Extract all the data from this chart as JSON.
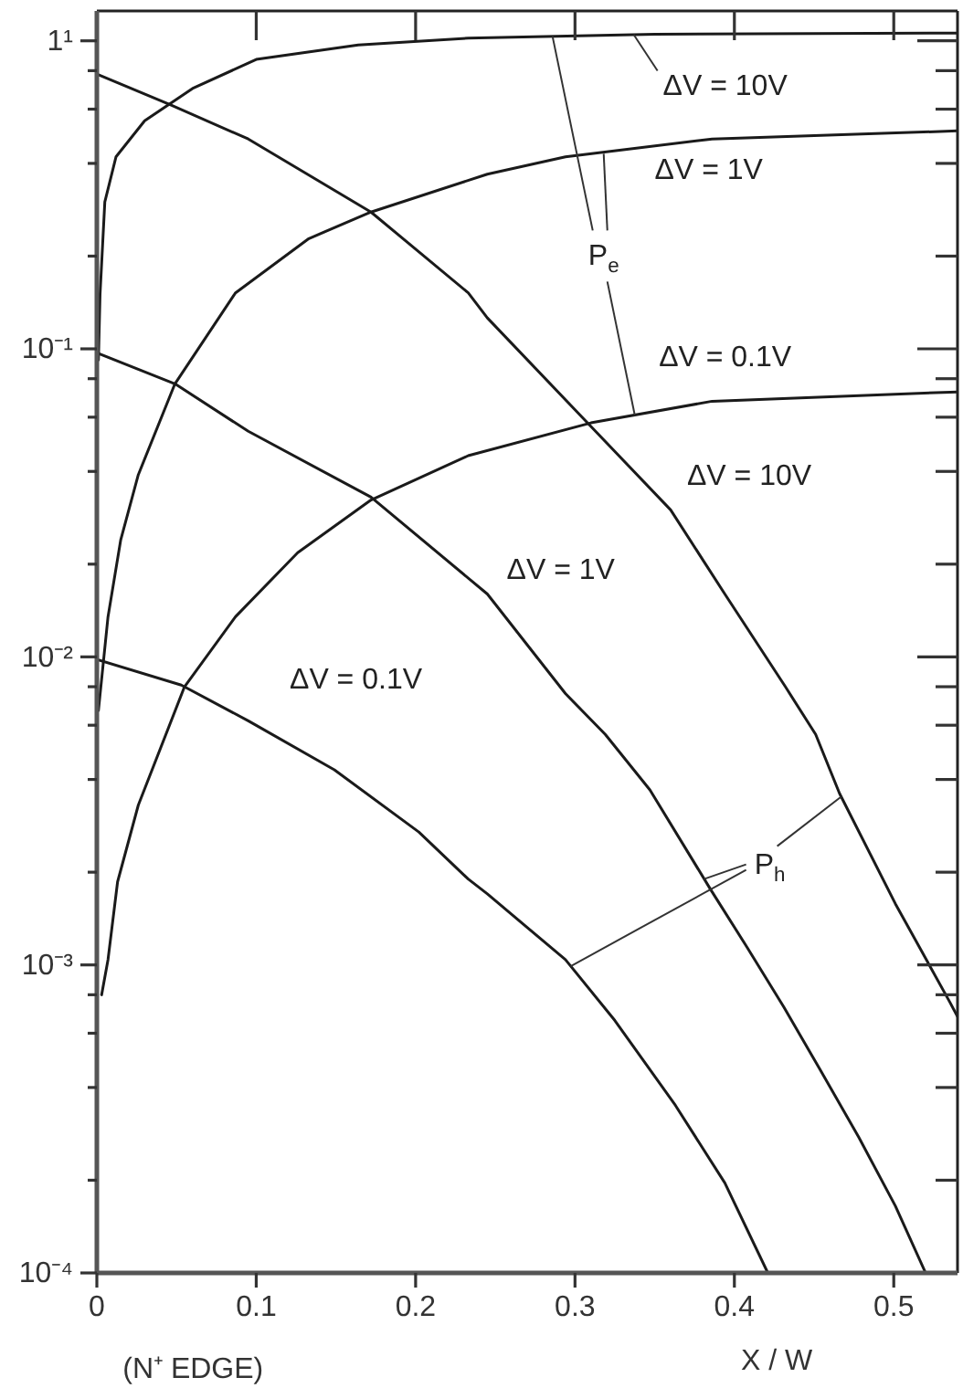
{
  "chart_data": {
    "type": "line",
    "xlabel": "X / W",
    "log": "y",
    "xlim": [
      0,
      0.54
    ],
    "xticks": [
      0,
      0.1,
      0.2,
      0.3,
      0.4,
      0.5
    ],
    "ylim": [
      0.0001,
      1.25
    ],
    "yticks": [
      {
        "value": 0.0001,
        "label": "10⁻⁴"
      },
      {
        "value": 0.0002,
        "label": null
      },
      {
        "value": 0.0004,
        "label": null
      },
      {
        "value": 0.0006,
        "label": null
      },
      {
        "value": 0.0008,
        "label": null
      },
      {
        "value": 0.001,
        "label": "10⁻³"
      },
      {
        "value": 0.002,
        "label": null
      },
      {
        "value": 0.004,
        "label": null
      },
      {
        "value": 0.006,
        "label": null
      },
      {
        "value": 0.008,
        "label": null
      },
      {
        "value": 0.01,
        "label": "10⁻²"
      },
      {
        "value": 0.02,
        "label": null
      },
      {
        "value": 0.04,
        "label": null
      },
      {
        "value": 0.06,
        "label": null
      },
      {
        "value": 0.08,
        "label": null
      },
      {
        "value": 0.1,
        "label": "10⁻¹"
      },
      {
        "value": 0.2,
        "label": null
      },
      {
        "value": 0.4,
        "label": null
      },
      {
        "value": 0.6,
        "label": null
      },
      {
        "value": 0.8,
        "label": null
      },
      {
        "value": 1,
        "label": "1¹"
      }
    ],
    "series": [
      {
        "color": "#1a1a1a",
        "x": [
          0.001,
          0.002,
          0.005,
          0.012,
          0.03,
          0.06,
          0.1,
          0.164,
          0.233,
          0.35,
          0.54
        ],
        "values": [
          0.092,
          0.15,
          0.3,
          0.42,
          0.55,
          0.7,
          0.87,
          0.97,
          1.02,
          1.05,
          1.06
        ]
      },
      {
        "color": "#1a1a1a",
        "x": [
          0.001,
          0.007,
          0.015,
          0.026,
          0.049,
          0.087,
          0.133,
          0.172,
          0.245,
          0.294,
          0.386,
          0.54
        ],
        "values": [
          0.0067,
          0.0135,
          0.024,
          0.039,
          0.077,
          0.152,
          0.228,
          0.278,
          0.369,
          0.42,
          0.48,
          0.51
        ]
      },
      {
        "color": "#1a1a1a",
        "x": [
          0.003,
          0.007,
          0.013,
          0.026,
          0.055,
          0.087,
          0.126,
          0.172,
          0.233,
          0.31,
          0.386,
          0.54
        ],
        "values": [
          0.0008,
          0.00104,
          0.00186,
          0.0033,
          0.008,
          0.0135,
          0.0218,
          0.0323,
          0.045,
          0.0575,
          0.0676,
          0.0725
        ]
      },
      {
        "color": "#1a1a1a",
        "x": [
          0,
          0.046,
          0.095,
          0.172,
          0.233,
          0.245,
          0.31,
          0.36,
          0.394,
          0.432,
          0.451,
          0.466,
          0.501,
          0.535,
          0.54
        ],
        "values": [
          0.78,
          0.62,
          0.48,
          0.278,
          0.152,
          0.126,
          0.056,
          0.03,
          0.016,
          0.008,
          0.0056,
          0.0036,
          0.00158,
          0.00076,
          0.00068
        ]
      },
      {
        "color": "#1a1a1a",
        "x": [
          0,
          0.049,
          0.095,
          0.172,
          0.245,
          0.294,
          0.319,
          0.347,
          0.385,
          0.408,
          0.431,
          0.454,
          0.478,
          0.501,
          0.52
        ],
        "values": [
          0.097,
          0.077,
          0.054,
          0.033,
          0.016,
          0.0076,
          0.0056,
          0.0037,
          0.00176,
          0.00114,
          0.00073,
          0.000455,
          0.000276,
          0.000165,
          0.0001
        ]
      },
      {
        "color": "#1a1a1a",
        "x": [
          0,
          0.053,
          0.095,
          0.149,
          0.202,
          0.233,
          0.245,
          0.294,
          0.325,
          0.363,
          0.394,
          0.421
        ],
        "values": [
          0.0098,
          0.0081,
          0.0062,
          0.0043,
          0.0027,
          0.0019,
          0.0017,
          0.00104,
          0.00066,
          0.00035,
          0.000196,
          0.0001
        ]
      }
    ],
    "annotations": [
      "ΔV = 10V",
      "ΔV = 1V",
      {
        "text": "P$_{e}$",
        "x": 0.318,
        "y": 0.43
      },
      "ΔV = 0.1V",
      "ΔV = 10V",
      "ΔV = 1V",
      "ΔV = 0.1V",
      {
        "text": "P$_{h}$",
        "x": 0.381,
        "y": 0.0019
      },
      "(N⁺ EDGE)"
    ]
  }
}
